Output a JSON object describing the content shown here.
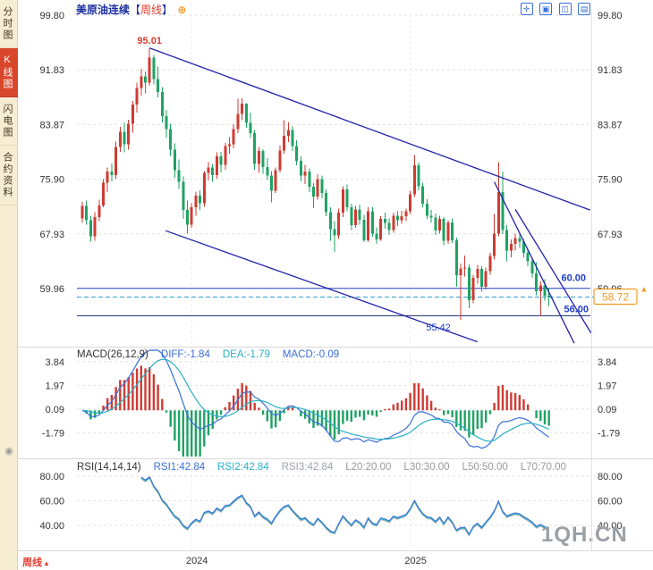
{
  "sidebar": {
    "tabs": [
      {
        "label": "分时图",
        "active": false
      },
      {
        "label": "K线图",
        "active": true
      },
      {
        "label": "闪电图",
        "active": false
      },
      {
        "label": "合约资料",
        "active": false
      }
    ],
    "bottom_icon": "◉"
  },
  "header": {
    "title": "美原油连续",
    "bracket_open": "【",
    "period": "周线",
    "bracket_close": "】",
    "add_icon": "⊕",
    "toolbar_icons": [
      {
        "name": "move-pane-icon",
        "glyph": "✛"
      },
      {
        "name": "single-pane-icon",
        "glyph": "▣"
      },
      {
        "name": "dual-pane-icon",
        "glyph": "◫"
      },
      {
        "name": "grid-pane-icon",
        "glyph": "▤"
      }
    ]
  },
  "footer": {
    "period_label": "周线",
    "arrow": "▲"
  },
  "watermark": "1QH.CN",
  "colors": {
    "up": "#cf3b32",
    "down": "#1fa263",
    "trend": "#2222aa",
    "level_blue": "#2040c8",
    "level_navy": "#142a6e",
    "last_dash": "#2f9fd4",
    "tag_orange": "#f59a23",
    "diff_blue": "#3a6fd8",
    "dea_cyan": "#2ab0c5",
    "rsi3_silver": "#b0b0b0",
    "accent_red": "#e03c2d"
  },
  "chart_data": {
    "type": "candlestick",
    "symbol": "美原油连续",
    "interval": "周线",
    "price_axis": {
      "ticks": [
        99.8,
        91.83,
        83.87,
        75.9,
        67.93,
        59.96
      ]
    },
    "x_axis": {
      "labels": [
        {
          "text": "2024",
          "index": 26
        },
        {
          "text": "2025",
          "index": 78
        }
      ]
    },
    "annotations": {
      "peak_label": {
        "text": "95.01",
        "index": 16,
        "price": 95.01
      },
      "low_label": {
        "text": "55.42",
        "index": 90,
        "price": 55.42
      },
      "level_60": {
        "text": "60.00",
        "price": 60.0
      },
      "level_56": {
        "text": "56.00",
        "price": 56.0
      },
      "last_price": {
        "text": "58.72",
        "price": 58.72
      }
    },
    "trendlines": [
      {
        "from_i": 16,
        "from_p": 95.01,
        "to_i": 120.8,
        "to_p": 71.4
      },
      {
        "from_i": 19.8,
        "from_p": 68.4,
        "to_i": 94,
        "to_p": 52.2
      },
      {
        "from_i": 98,
        "from_p": 75.5,
        "to_i": 117,
        "to_p": 52.0
      },
      {
        "from_i": 103,
        "from_p": 71.5,
        "to_i": 121,
        "to_p": 53.5
      }
    ],
    "candles": [
      [
        70.2,
        72.6,
        69.5,
        72.0
      ],
      [
        72.0,
        72.8,
        69.3,
        69.9
      ],
      [
        69.9,
        70.5,
        66.8,
        67.6
      ],
      [
        67.6,
        71.1,
        66.9,
        70.4
      ],
      [
        70.4,
        72.9,
        69.8,
        72.1
      ],
      [
        72.1,
        75.9,
        71.8,
        75.4
      ],
      [
        75.4,
        77.6,
        74.0,
        77.0
      ],
      [
        77.0,
        78.2,
        75.6,
        76.5
      ],
      [
        76.5,
        81.4,
        76.0,
        80.6
      ],
      [
        80.6,
        83.5,
        79.9,
        82.8
      ],
      [
        82.8,
        84.2,
        79.8,
        81.0
      ],
      [
        81.0,
        84.6,
        80.2,
        84.0
      ],
      [
        84.0,
        87.3,
        82.7,
        86.8
      ],
      [
        86.8,
        90.0,
        85.6,
        89.2
      ],
      [
        89.2,
        92.0,
        88.1,
        90.9
      ],
      [
        90.9,
        91.6,
        88.4,
        90.0
      ],
      [
        90.0,
        95.01,
        89.5,
        93.6
      ],
      [
        93.6,
        94.0,
        89.7,
        90.5
      ],
      [
        90.5,
        92.3,
        87.8,
        88.6
      ],
      [
        88.6,
        89.3,
        84.2,
        85.1
      ],
      [
        85.1,
        86.0,
        81.9,
        83.2
      ],
      [
        83.2,
        84.0,
        79.2,
        80.2
      ],
      [
        80.2,
        81.1,
        76.1,
        77.2
      ],
      [
        77.2,
        78.8,
        74.5,
        75.5
      ],
      [
        75.5,
        76.3,
        70.1,
        71.4
      ],
      [
        71.4,
        72.8,
        68.0,
        69.3
      ],
      [
        69.3,
        72.4,
        68.8,
        71.8
      ],
      [
        71.8,
        74.1,
        70.6,
        73.5
      ],
      [
        73.5,
        74.3,
        71.4,
        72.4
      ],
      [
        72.4,
        77.1,
        71.9,
        76.8
      ],
      [
        76.8,
        78.4,
        75.7,
        77.6
      ],
      [
        77.6,
        78.1,
        75.5,
        76.5
      ],
      [
        76.5,
        79.8,
        76.0,
        79.2
      ],
      [
        79.2,
        79.9,
        76.9,
        78.0
      ],
      [
        78.0,
        81.2,
        77.3,
        80.7
      ],
      [
        80.7,
        82.0,
        79.6,
        81.0
      ],
      [
        81.0,
        83.9,
        80.4,
        83.2
      ],
      [
        83.2,
        87.6,
        82.6,
        85.4
      ],
      [
        85.4,
        87.7,
        84.5,
        86.9
      ],
      [
        86.9,
        87.0,
        83.4,
        84.1
      ],
      [
        84.1,
        85.6,
        81.9,
        82.6
      ],
      [
        82.6,
        83.1,
        77.3,
        78.1
      ],
      [
        78.1,
        80.6,
        76.8,
        80.0
      ],
      [
        80.0,
        80.3,
        76.7,
        77.7
      ],
      [
        77.7,
        79.0,
        75.8,
        76.4
      ],
      [
        76.4,
        77.1,
        72.5,
        74.2
      ],
      [
        74.2,
        77.6,
        73.9,
        77.2
      ],
      [
        77.2,
        80.8,
        76.9,
        80.1
      ],
      [
        80.1,
        84.5,
        79.6,
        82.2
      ],
      [
        82.2,
        84.2,
        81.3,
        83.1
      ],
      [
        83.1,
        83.6,
        80.0,
        80.7
      ],
      [
        80.7,
        81.6,
        77.9,
        78.6
      ],
      [
        78.6,
        79.2,
        75.6,
        76.4
      ],
      [
        76.4,
        78.0,
        75.2,
        77.0
      ],
      [
        77.0,
        77.5,
        74.0,
        74.8
      ],
      [
        74.8,
        75.3,
        71.7,
        73.4
      ],
      [
        73.4,
        76.6,
        72.9,
        75.9
      ],
      [
        75.9,
        76.4,
        73.1,
        73.9
      ],
      [
        73.9,
        74.4,
        70.5,
        71.1
      ],
      [
        71.1,
        71.8,
        66.9,
        68.6
      ],
      [
        68.6,
        69.8,
        65.3,
        67.7
      ],
      [
        67.7,
        71.6,
        67.2,
        71.0
      ],
      [
        71.0,
        74.9,
        70.4,
        74.4
      ],
      [
        74.4,
        75.1,
        71.2,
        71.8
      ],
      [
        71.8,
        72.3,
        68.5,
        69.2
      ],
      [
        69.2,
        72.0,
        68.8,
        71.5
      ],
      [
        71.5,
        72.2,
        69.3,
        70.0
      ],
      [
        70.0,
        70.7,
        66.7,
        67.0
      ],
      [
        67.0,
        71.8,
        66.8,
        71.2
      ],
      [
        71.2,
        71.9,
        67.5,
        68.0
      ],
      [
        68.0,
        68.9,
        66.5,
        67.1
      ],
      [
        67.1,
        70.5,
        66.9,
        70.1
      ],
      [
        70.1,
        71.0,
        68.7,
        69.5
      ],
      [
        69.5,
        70.2,
        67.8,
        68.5
      ],
      [
        68.5,
        71.0,
        68.1,
        70.6
      ],
      [
        70.6,
        71.2,
        69.1,
        69.9
      ],
      [
        69.9,
        71.3,
        69.4,
        70.5
      ],
      [
        70.5,
        71.6,
        69.8,
        71.2
      ],
      [
        71.2,
        74.2,
        70.8,
        73.7
      ],
      [
        73.7,
        79.4,
        73.3,
        77.9
      ],
      [
        77.9,
        78.3,
        74.2,
        74.9
      ],
      [
        74.9,
        75.4,
        71.8,
        72.3
      ],
      [
        72.3,
        73.0,
        70.1,
        70.6
      ],
      [
        70.6,
        71.4,
        69.6,
        70.3
      ],
      [
        70.3,
        70.9,
        67.8,
        68.4
      ],
      [
        68.4,
        70.6,
        68.0,
        70.1
      ],
      [
        70.1,
        70.4,
        66.3,
        66.9
      ],
      [
        66.9,
        69.9,
        66.5,
        69.6
      ],
      [
        69.6,
        70.2,
        66.6,
        67.0
      ],
      [
        67.0,
        67.4,
        60.2,
        61.9
      ],
      [
        61.9,
        63.6,
        55.42,
        62.9
      ],
      [
        62.9,
        64.8,
        61.7,
        63.0
      ],
      [
        63.0,
        63.5,
        57.1,
        58.3
      ],
      [
        58.3,
        62.0,
        57.8,
        61.5
      ],
      [
        61.5,
        63.4,
        60.7,
        62.8
      ],
      [
        62.8,
        63.2,
        59.5,
        60.2
      ],
      [
        60.2,
        63.0,
        59.8,
        62.5
      ],
      [
        62.5,
        65.2,
        62.0,
        64.7
      ],
      [
        64.7,
        70.8,
        64.2,
        68.0
      ],
      [
        68.0,
        78.4,
        67.6,
        74.0
      ],
      [
        74.0,
        77.0,
        67.9,
        68.5
      ],
      [
        68.5,
        69.2,
        63.9,
        65.5
      ],
      [
        65.5,
        67.1,
        64.5,
        66.5
      ],
      [
        66.5,
        68.0,
        65.5,
        67.3
      ],
      [
        67.3,
        67.9,
        65.9,
        66.8
      ],
      [
        66.8,
        67.2,
        64.5,
        65.2
      ],
      [
        65.2,
        65.8,
        63.2,
        63.9
      ],
      [
        63.9,
        64.4,
        61.5,
        62.2
      ],
      [
        62.2,
        63.8,
        59.0,
        59.6
      ],
      [
        59.6,
        61.0,
        56.0,
        60.4
      ],
      [
        60.4,
        61.3,
        58.2,
        58.9
      ],
      [
        58.9,
        60.1,
        57.4,
        58.72
      ]
    ],
    "macd": {
      "title": "MACD(26,12,9)",
      "labels": [
        {
          "text": "DIFF:-1.84"
        },
        {
          "text": "DEA:-1.79"
        },
        {
          "text": "MACD:-0.09"
        }
      ],
      "ticks": [
        3.84,
        1.97,
        0.09,
        -1.79
      ],
      "params": {
        "fast": 12,
        "slow": 26,
        "signal": 9
      }
    },
    "rsi": {
      "title": "RSI(14,14,14)",
      "labels": [
        {
          "text": "RSI1:42.84"
        },
        {
          "text": "RSI2:42.84"
        },
        {
          "text": "RSI3:42.84"
        },
        {
          "text": "L20:20.00"
        },
        {
          "text": "L30:30.00"
        },
        {
          "text": "L50:50.00"
        },
        {
          "text": "L70:70.00"
        }
      ],
      "ticks": [
        80.0,
        60.0,
        40.0
      ],
      "period": 14
    }
  }
}
